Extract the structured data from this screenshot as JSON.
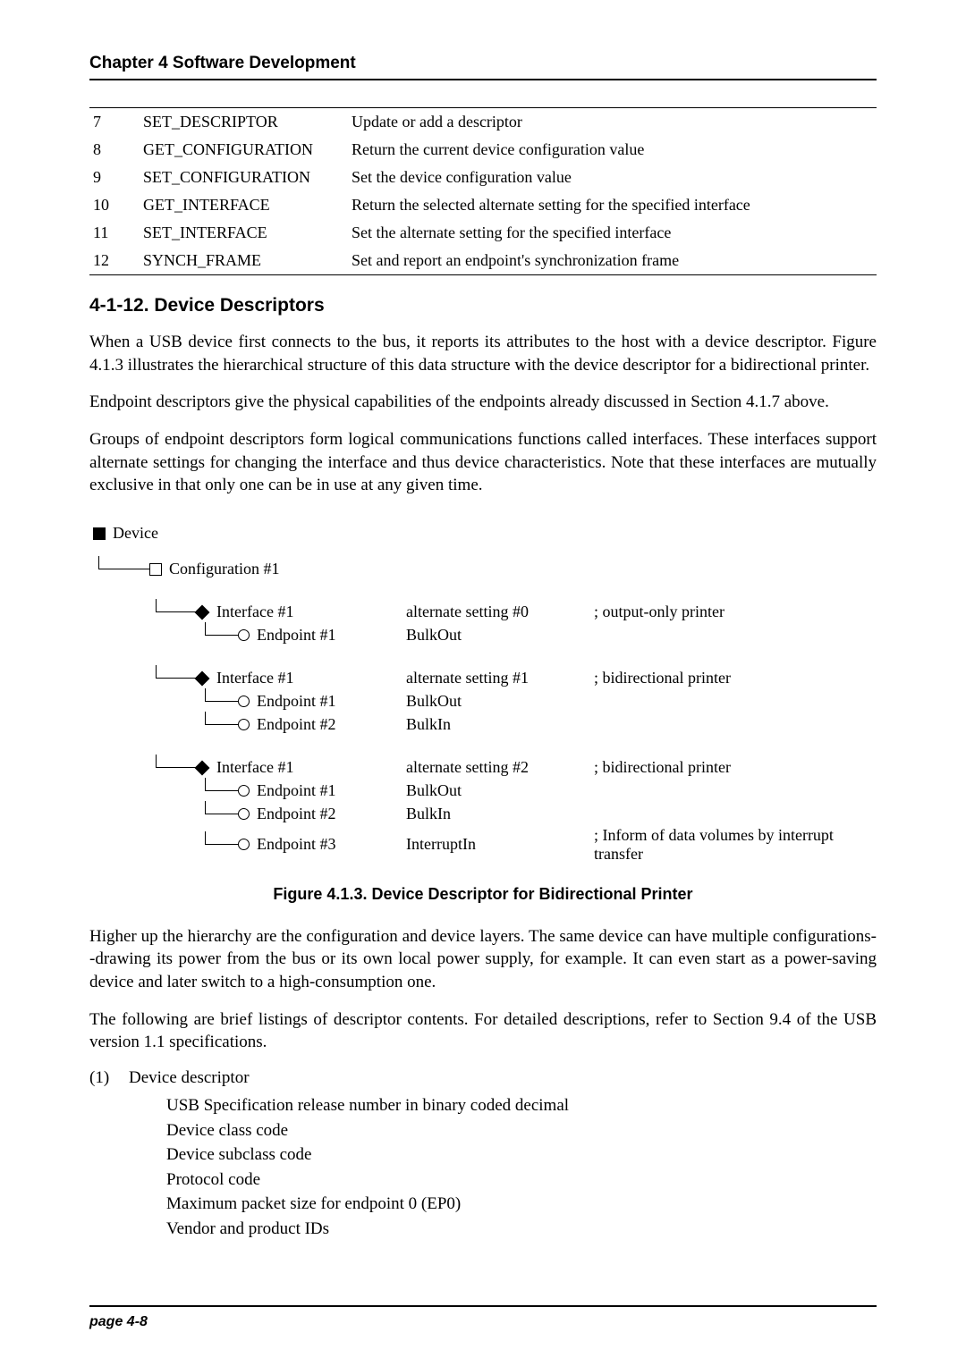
{
  "header": {
    "chapter": "Chapter 4    Software Development"
  },
  "table": {
    "rows": [
      {
        "num": "7",
        "name": "SET_DESCRIPTOR",
        "desc": "Update or add a descriptor"
      },
      {
        "num": "8",
        "name": "GET_CONFIGURATION",
        "desc": "Return the current device configuration value"
      },
      {
        "num": "9",
        "name": "SET_CONFIGURATION",
        "desc": "Set the device configuration value"
      },
      {
        "num": "10",
        "name": "GET_INTERFACE",
        "desc": "Return the selected alternate setting for the specified interface"
      },
      {
        "num": "11",
        "name": "SET_INTERFACE",
        "desc": "Set the alternate setting for the specified interface"
      },
      {
        "num": "12",
        "name": "SYNCH_FRAME",
        "desc": "Set and report an endpoint's synchronization frame"
      }
    ]
  },
  "section": {
    "heading": "4-1-12.  Device Descriptors"
  },
  "paragraphs": {
    "p1": "When a USB device first connects to the bus, it reports its attributes to the host with a device descriptor. Figure 4.1.3 illustrates the hierarchical structure of this data structure with the device descriptor for a bidirectional printer.",
    "p2": "Endpoint descriptors give the physical capabilities of the endpoints already discussed in Section 4.1.7 above.",
    "p3": "Groups of endpoint descriptors form logical communications functions called interfaces. These interfaces support alternate settings for changing the interface and thus device characteristics. Note that these interfaces are mutually exclusive in that only one can be in use at any given time.",
    "p4": "Higher up the hierarchy are the configuration and device layers. The same device can have multiple configurations--drawing its power from the bus or its own local power supply, for example. It can even start as a power-saving device and later switch to a high-consumption one.",
    "p5": "The following are brief listings of descriptor contents. For detailed descriptions, refer to Section 9.4 of the USB version 1.1 specifications."
  },
  "diagram": {
    "device": "Device",
    "config": "Configuration #1",
    "groups": [
      {
        "iface": "Interface #1",
        "alt": "alternate setting #0",
        "comment": "; output-only printer",
        "endpoints": [
          {
            "label": "Endpoint #1",
            "attr": "BulkOut",
            "comment": ""
          }
        ]
      },
      {
        "iface": "Interface #1",
        "alt": "alternate setting #1",
        "comment": "; bidirectional printer",
        "endpoints": [
          {
            "label": "Endpoint #1",
            "attr": "BulkOut",
            "comment": ""
          },
          {
            "label": "Endpoint #2",
            "attr": "BulkIn",
            "comment": ""
          }
        ]
      },
      {
        "iface": "Interface #1",
        "alt": "alternate setting #2",
        "comment": "; bidirectional printer",
        "endpoints": [
          {
            "label": "Endpoint #1",
            "attr": "BulkOut",
            "comment": ""
          },
          {
            "label": "Endpoint #2",
            "attr": "BulkIn",
            "comment": ""
          },
          {
            "label": "Endpoint #3",
            "attr": "InterruptIn",
            "comment": "; Inform of data volumes by interrupt transfer"
          }
        ]
      }
    ]
  },
  "figure": {
    "caption": "Figure 4.1.3.    Device Descriptor for Bidirectional Printer"
  },
  "list": {
    "item1_num": "(1)",
    "item1_label": "Device descriptor",
    "sub1": "USB Specification release number in binary coded decimal",
    "sub2": "Device class code",
    "sub3": "Device subclass code",
    "sub4": "Protocol code",
    "sub5": "Maximum packet size for endpoint 0 (EP0)",
    "sub6": "Vendor and product IDs"
  },
  "footer": {
    "page": "page 4-8"
  }
}
